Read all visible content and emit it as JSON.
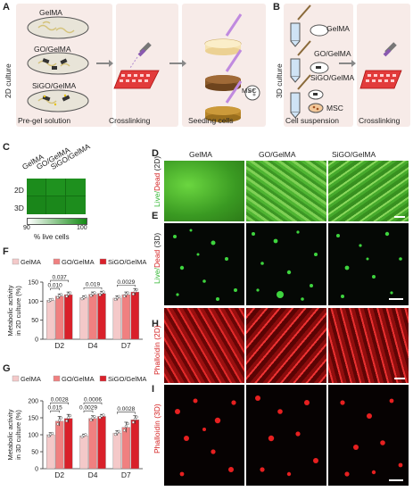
{
  "panels": {
    "A": {
      "letter": "A",
      "side_label": "2D culture",
      "materials": [
        "GelMA",
        "GO/GelMA",
        "SiGO/GelMA"
      ],
      "steps": [
        "Pre-gel solution",
        "Crosslinking",
        "Seeding cells"
      ],
      "cell_label": "MSC"
    },
    "B": {
      "letter": "B",
      "side_label": "3D culture",
      "materials": [
        "GelMA",
        "GO/GelMA",
        "SiGO/GelMA"
      ],
      "cell_label": "MSC",
      "steps": [
        "Cell suspension",
        "Crosslinking"
      ]
    },
    "C": {
      "letter": "C",
      "columns": [
        "GelMA",
        "GO/GelMA",
        "SiGO/GelMA"
      ],
      "rows": [
        "2D",
        "3D"
      ],
      "scale_min": "90",
      "scale_max": "100",
      "scale_label": "% live cells"
    },
    "D": {
      "letter": "D",
      "row_label_a": "Live/",
      "row_label_b": "Dead",
      "row_label_c": " (2D)"
    },
    "E": {
      "letter": "E",
      "row_label_a": "Live/",
      "row_label_b": "Dead",
      "row_label_c": " (3D)"
    },
    "H": {
      "letter": "H",
      "row_label": "Phalloidin (2D)"
    },
    "I": {
      "letter": "I",
      "row_label": "Phalloidin (3D)"
    },
    "image_columns": [
      "GelMA",
      "GO/GelMA",
      "SiGO/GelMA"
    ],
    "F": {
      "letter": "F"
    },
    "G": {
      "letter": "G"
    }
  },
  "colors": {
    "gelma": "#f4c9c9",
    "go_gelma": "#f08080",
    "sigo_gelma": "#d9202a",
    "live": "#2fb52f",
    "dead": "#d42020",
    "panel_bg": "#f7ebe8"
  },
  "chart_data": [
    {
      "type": "bar",
      "panel": "F",
      "categories": [
        "D2",
        "D4",
        "D7"
      ],
      "series": [
        {
          "name": "GelMA",
          "values": [
            102,
            109,
            108
          ]
        },
        {
          "name": "GO/GelMA",
          "values": [
            113,
            118,
            117
          ]
        },
        {
          "name": "SiGO/GelMA",
          "values": [
            117,
            120,
            124
          ]
        }
      ],
      "errors": [
        [
          4,
          5,
          6
        ],
        [
          6,
          6,
          7
        ],
        [
          7,
          6,
          9
        ]
      ],
      "ylabel": "Metabolic activity in 2D culture (%)",
      "ylim": [
        0,
        150
      ],
      "yticks": [
        0,
        50,
        100,
        150
      ],
      "p_values": [
        {
          "text": "0.010",
          "category": 0,
          "from": 0,
          "to": 1,
          "level": 0
        },
        {
          "text": "0.037",
          "category": 0,
          "from": 0,
          "to": 2,
          "level": 1
        },
        {
          "text": "0.019",
          "category": 1,
          "from": 0,
          "to": 2,
          "level": 0
        },
        {
          "text": "0.0029",
          "category": 2,
          "from": 0,
          "to": 2,
          "level": 0
        }
      ],
      "legend": "top"
    },
    {
      "type": "bar",
      "panel": "G",
      "categories": [
        "D2",
        "D4",
        "D7"
      ],
      "series": [
        {
          "name": "GelMA",
          "values": [
            100,
            97,
            105
          ]
        },
        {
          "name": "GO/GelMA",
          "values": [
            140,
            148,
            122
          ]
        },
        {
          "name": "SiGO/GelMA",
          "values": [
            148,
            154,
            144
          ]
        }
      ],
      "errors": [
        [
          6,
          5,
          7
        ],
        [
          14,
          8,
          15
        ],
        [
          12,
          6,
          12
        ]
      ],
      "ylabel": "Metabolic activity in 3D culture (%)",
      "ylim": [
        0,
        200
      ],
      "yticks": [
        0,
        50,
        100,
        150,
        200
      ],
      "p_values": [
        {
          "text": "0.015",
          "category": 0,
          "from": 0,
          "to": 1,
          "level": 0
        },
        {
          "text": "0.0028",
          "category": 0,
          "from": 0,
          "to": 2,
          "level": 1
        },
        {
          "text": "0.0029",
          "category": 1,
          "from": 0,
          "to": 1,
          "level": 0
        },
        {
          "text": "0.0006",
          "category": 1,
          "from": 0,
          "to": 2,
          "level": 1
        },
        {
          "text": "0.0028",
          "category": 2,
          "from": 0,
          "to": 2,
          "level": 0
        }
      ],
      "legend": "top"
    }
  ]
}
